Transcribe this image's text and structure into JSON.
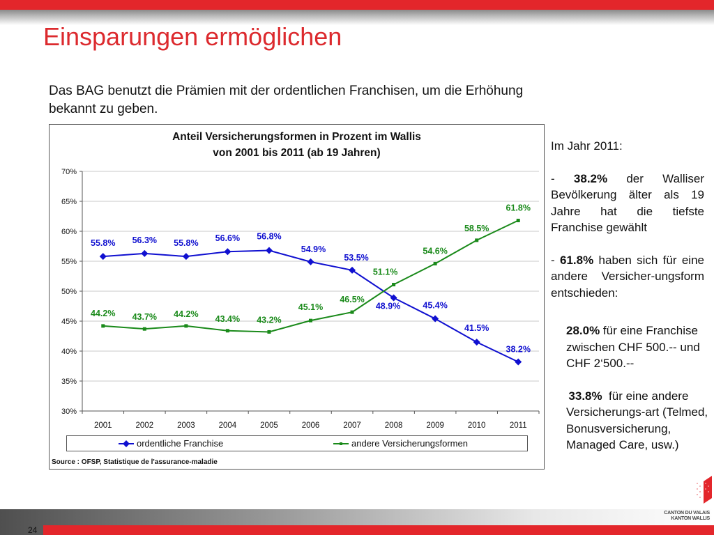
{
  "slide": {
    "title": "Einsparungen ermöglichen",
    "intro": "Das BAG benutzt die Prämien mit der ordentlichen Franchisen, um die Erhöhung bekannt zu geben.",
    "page_number": "24",
    "logo_line1": "CANTON DU VALAIS",
    "logo_line2": "KANTON WALLIS",
    "brand_color": "#e3262b"
  },
  "sidebar": {
    "heading": "Im Jahr 2011:",
    "p1_prefix": "- ",
    "p1_bold": "38.2%",
    "p1_text": " der Walliser Bevölkerung älter als 19 Jahre hat die tiefste Franchise gewählt",
    "p2_prefix": "- ",
    "p2_bold": "61.8%",
    "p2_text": " haben sich für eine andere Versicher-ungsform entschieden:",
    "sub1_bold": "28.0%",
    "sub1_text": " für eine Franchise zwischen CHF 500.-- und CHF 2‘500.--",
    "sub2_bold": "33.8%",
    "sub2_text": "  für eine andere Versicherungs-art (Telmed, Bonusversicherung, Managed Care, usw.)"
  },
  "chart_data": {
    "type": "line",
    "title": "Anteil Versicherungsformen in Prozent im Wallis",
    "subtitle": "von 2001 bis 2011 (ab 19 Jahren)",
    "xlabel": "",
    "ylabel": "",
    "categories": [
      "2001",
      "2002",
      "2003",
      "2004",
      "2005",
      "2006",
      "2007",
      "2008",
      "2009",
      "2010",
      "2011"
    ],
    "ylim": [
      30,
      70
    ],
    "yticks": [
      30,
      35,
      40,
      45,
      50,
      55,
      60,
      65,
      70
    ],
    "ytick_labels": [
      "30%",
      "35%",
      "40%",
      "45%",
      "50%",
      "55%",
      "60%",
      "65%",
      "70%"
    ],
    "grid": true,
    "legend_position": "bottom",
    "source": "Source : OFSP, Statistique de l'assurance-maladie",
    "series": [
      {
        "name": "ordentliche Franchise",
        "color": "#1010d0",
        "marker": "diamond",
        "values": [
          55.8,
          56.3,
          55.8,
          56.6,
          56.8,
          54.9,
          53.5,
          48.9,
          45.4,
          41.5,
          38.2
        ],
        "labels": [
          "55.8%",
          "56.3%",
          "55.8%",
          "56.6%",
          "56.8%",
          "54.9%",
          "53.5%",
          "48.9%",
          "45.4%",
          "41.5%",
          "38.2%"
        ]
      },
      {
        "name": "andere Versicherungsformen",
        "color": "#1a8a1a",
        "marker": "square",
        "values": [
          44.2,
          43.7,
          44.2,
          43.4,
          43.2,
          45.1,
          46.5,
          51.1,
          54.6,
          58.5,
          61.8
        ],
        "labels": [
          "44.2%",
          "43.7%",
          "44.2%",
          "43.4%",
          "43.2%",
          "45.1%",
          "46.5%",
          "51.1%",
          "54.6%",
          "58.5%",
          "61.8%"
        ]
      }
    ]
  }
}
